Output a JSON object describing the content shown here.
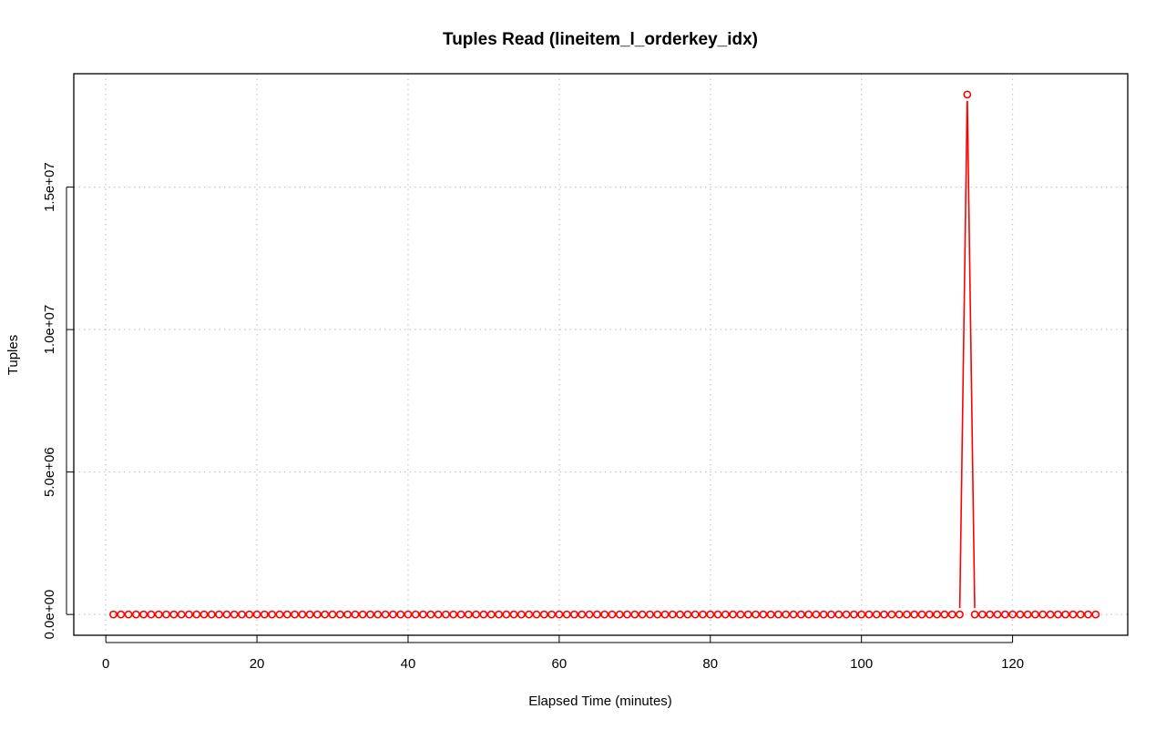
{
  "chart_data": {
    "type": "line",
    "title": "Tuples Read (lineitem_l_orderkey_idx)",
    "xlabel": "Elapsed Time (minutes)",
    "ylabel": "Tuples",
    "xlim": [
      -4.24,
      135.24
    ],
    "ylim": [
      -730000,
      18980000
    ],
    "x_ticks": [
      0,
      20,
      40,
      60,
      80,
      100,
      120
    ],
    "x_tick_labels": [
      "0",
      "20",
      "40",
      "60",
      "80",
      "100",
      "120"
    ],
    "y_ticks": [
      0,
      5000000,
      10000000,
      15000000
    ],
    "y_tick_labels": [
      "0.0e+00",
      "5.0e+06",
      "1.0e+07",
      "1.5e+07"
    ],
    "grid": true,
    "series": [
      {
        "color": "#ff0000",
        "marker": "open-circle",
        "x_start": 1,
        "x_end": 131,
        "baseline": 0,
        "spike": {
          "x": 114,
          "y": 18250000
        }
      }
    ]
  }
}
